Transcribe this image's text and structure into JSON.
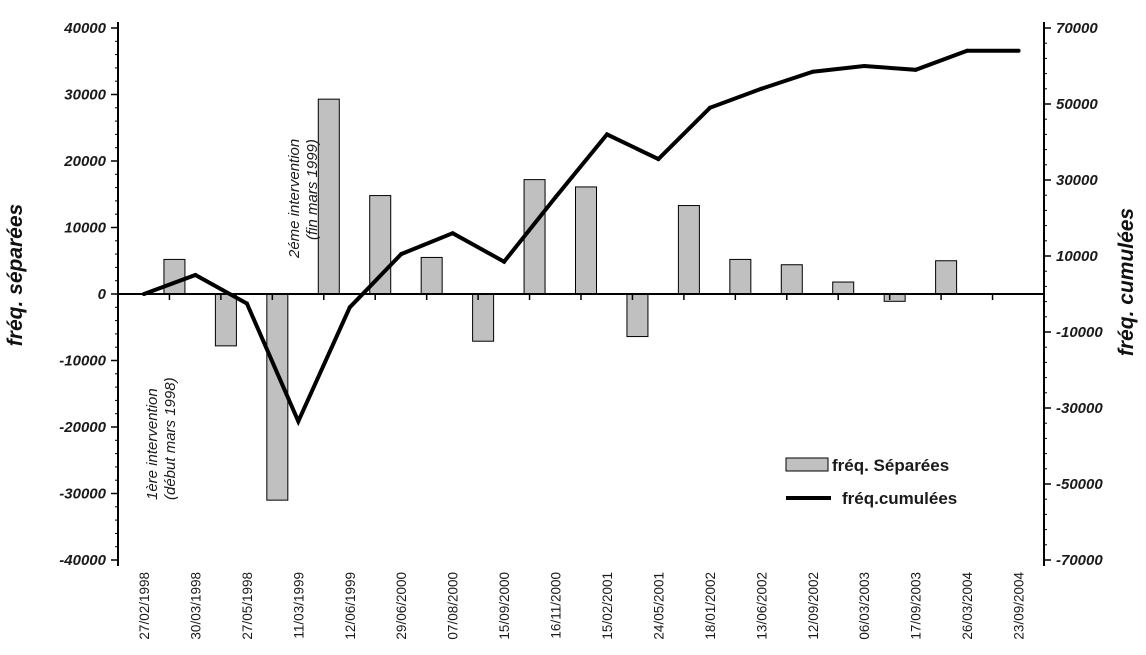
{
  "chart_data": {
    "type": "bar",
    "categories": [
      "27/02/1998",
      "30/03/1998",
      "27/05/1998",
      "11/03/1999",
      "12/06/1999",
      "29/06/2000",
      "07/08/2000",
      "15/09/2000",
      "16/11/2000",
      "15/02/2001",
      "24/05/2001",
      "18/01/2002",
      "13/06/2002",
      "12/09/2002",
      "06/03/2003",
      "17/09/2003",
      "26/03/2004",
      "23/09/2004"
    ],
    "series": [
      {
        "name": "fréq. Séparées",
        "type": "bar",
        "axis": "left",
        "color": "#c0c0c0",
        "values": [
          0,
          5200,
          -7800,
          -31000,
          29300,
          14800,
          5500,
          -7100,
          17200,
          16100,
          -6400,
          13300,
          5200,
          4400,
          1800,
          -1100,
          5000,
          0
        ]
      },
      {
        "name": "fréq.cumulées",
        "type": "line",
        "axis": "right",
        "color": "#000000",
        "values": [
          0,
          5000,
          -2500,
          -33500,
          -3500,
          10500,
          16000,
          8500,
          25500,
          42000,
          35500,
          49000,
          54000,
          58500,
          60000,
          59000,
          64000,
          64000
        ]
      }
    ],
    "ylabel": "fréq. séparées",
    "y2label": "fréq. cumulées",
    "ylim": [
      -40000,
      40000
    ],
    "y2lim": [
      -70000,
      70000
    ],
    "yticks": [
      "40000",
      "30000",
      "20000",
      "10000",
      "0",
      "-10000",
      "-20000",
      "-30000",
      "-40000"
    ],
    "y2ticks": [
      "70000",
      "50000",
      "30000",
      "10000",
      "-10000",
      "-30000",
      "-50000",
      "-70000"
    ],
    "annotations": [
      {
        "lines": [
          "1ère intervention",
          "(début mars 1998)"
        ]
      },
      {
        "lines": [
          "2éme intervention",
          "(fin mars 1999)"
        ]
      }
    ],
    "legend_position": "bottom-right",
    "grid": false
  }
}
